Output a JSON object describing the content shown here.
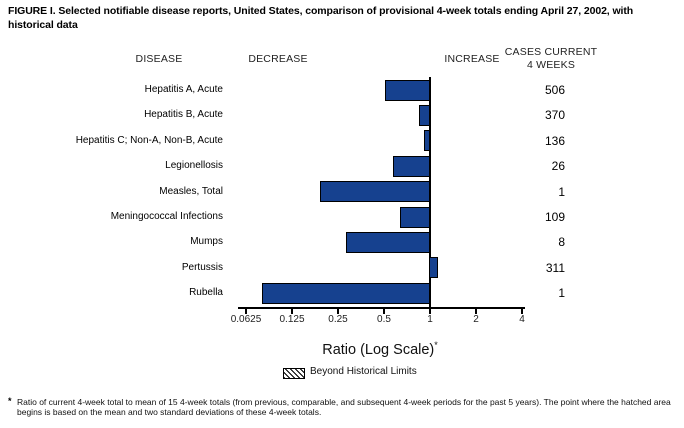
{
  "title": "FIGURE I. Selected notifiable disease reports, United States, comparison of provisional 4-week totals ending April 27, 2002, with historical data",
  "headers": {
    "disease": "DISEASE",
    "decrease": "DECREASE",
    "increase": "INCREASE",
    "cases_line1": "CASES CURRENT",
    "cases_line2": "4 WEEKS"
  },
  "chart_data": {
    "type": "bar",
    "orientation": "horizontal",
    "xscale": "log2",
    "baseline": 1,
    "categories": [
      "Hepatitis A, Acute",
      "Hepatitis B, Acute",
      "Hepatitis C; Non-A, Non-B, Acute",
      "Legionellosis",
      "Measles, Total",
      "Meningococcal Infections",
      "Mumps",
      "Pertussis",
      "Rubella"
    ],
    "values": [
      0.51,
      0.85,
      0.92,
      0.57,
      0.19,
      0.64,
      0.28,
      1.12,
      0.08
    ],
    "cases_current_4_weeks": [
      "506",
      "370",
      "136",
      "26",
      "1",
      "109",
      "8",
      "311",
      "1"
    ],
    "x_ticks": [
      "0.0625",
      "0.125",
      "0.25",
      "0.5",
      "1",
      "2",
      "4"
    ],
    "xlim": [
      0.0625,
      4
    ],
    "xlabel": "Ratio (Log Scale)",
    "xlabel_note_marker": "*",
    "bar_color": "#16418f",
    "grid": false,
    "legend": {
      "swatch": "hatched",
      "label": "Beyond Historical Limits",
      "position": "bottom"
    }
  },
  "footnote": {
    "marker": "*",
    "text": "Ratio of current 4-week total to mean of 15 4-week totals (from previous, comparable, and subsequent 4-week periods for the past 5 years). The point where the hatched area begins is based on the mean and two standard deviations of these 4-week totals."
  }
}
